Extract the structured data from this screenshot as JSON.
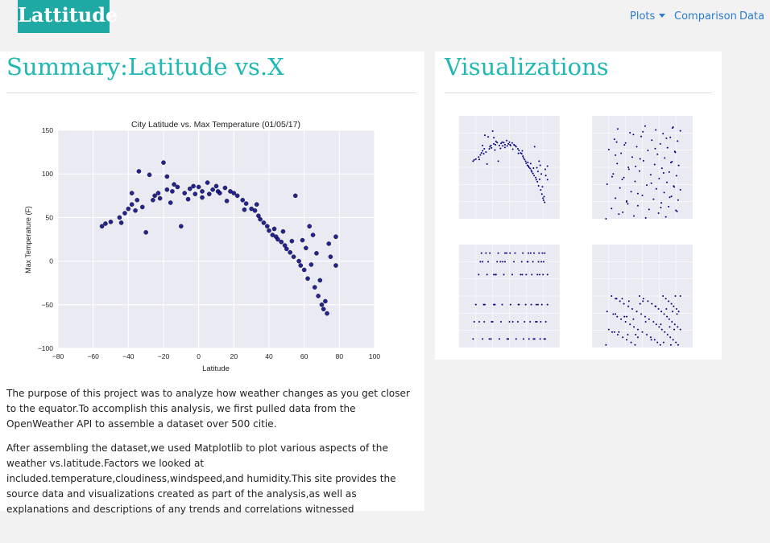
{
  "brand": "Lattitude",
  "nav": {
    "plots": "Plots",
    "comparison": "Comparison",
    "data": "Data"
  },
  "summary": {
    "heading": "Summary:Latitude vs.X",
    "paragraph1": "The purpose of this project was to analyze how weather changes as you get closer to the equator.To accomplish this analysis, we first pulled data from the OpenWeather API to assemble a dataset over 500 citie.",
    "paragraph2": "After assembling the dataset,we used Matplotlib to plot various aspects of the weather vs.latitude.Factors we looked at included.temperature,cloudiness,windspeed,and humidity.This site provides the source data and visualizations created as part of the analysis,as well as explanations and descriptions of any trends and correlations witnessed"
  },
  "visualizations": {
    "heading": "Visualizations"
  },
  "colors": {
    "accent": "#1fb8b2",
    "brand_bg": "#1fa9a4",
    "link": "#2b7bd0",
    "point": "#000080"
  },
  "chart_data": {
    "type": "scatter",
    "title": "City Latitude vs. Max Temperature (01/05/17)",
    "xlabel": "Latitude",
    "ylabel": "Max Temperature (F)",
    "xlim": [
      -80,
      100
    ],
    "ylim": [
      -100,
      150
    ],
    "xticks": [
      -80,
      -60,
      -40,
      -20,
      0,
      20,
      40,
      60,
      80,
      100
    ],
    "yticks": [
      -100,
      -50,
      0,
      50,
      100,
      150
    ],
    "grid": true,
    "points": [
      [
        -55,
        40
      ],
      [
        -53,
        43
      ],
      [
        -50,
        45
      ],
      [
        -45,
        50
      ],
      [
        -42,
        55
      ],
      [
        -40,
        60
      ],
      [
        -38,
        65
      ],
      [
        -35,
        70
      ],
      [
        -34,
        103
      ],
      [
        -30,
        33
      ],
      [
        -28,
        99
      ],
      [
        -25,
        75
      ],
      [
        -23,
        78
      ],
      [
        -20,
        113
      ],
      [
        -18,
        82
      ],
      [
        -15,
        80
      ],
      [
        -12,
        85
      ],
      [
        -10,
        40
      ],
      [
        -8,
        78
      ],
      [
        -5,
        83
      ],
      [
        -3,
        86
      ],
      [
        0,
        85
      ],
      [
        2,
        80
      ],
      [
        5,
        90
      ],
      [
        8,
        82
      ],
      [
        10,
        86
      ],
      [
        12,
        78
      ],
      [
        15,
        84
      ],
      [
        18,
        80
      ],
      [
        20,
        78
      ],
      [
        22,
        75
      ],
      [
        25,
        70
      ],
      [
        27,
        66
      ],
      [
        30,
        60
      ],
      [
        32,
        58
      ],
      [
        34,
        52
      ],
      [
        35,
        48
      ],
      [
        37,
        44
      ],
      [
        39,
        40
      ],
      [
        40,
        35
      ],
      [
        42,
        30
      ],
      [
        44,
        28
      ],
      [
        45,
        25
      ],
      [
        47,
        22
      ],
      [
        49,
        18
      ],
      [
        50,
        14
      ],
      [
        52,
        10
      ],
      [
        54,
        5
      ],
      [
        55,
        75
      ],
      [
        57,
        0
      ],
      [
        58,
        -5
      ],
      [
        60,
        -10
      ],
      [
        62,
        -20
      ],
      [
        63,
        40
      ],
      [
        65,
        30
      ],
      [
        66,
        -30
      ],
      [
        68,
        -40
      ],
      [
        70,
        -50
      ],
      [
        71,
        -55
      ],
      [
        73,
        -60
      ],
      [
        74,
        20
      ],
      [
        75,
        5
      ],
      [
        78,
        28
      ],
      [
        78,
        -5
      ],
      [
        -38,
        78
      ],
      [
        -32,
        62
      ],
      [
        -26,
        70
      ],
      [
        -22,
        72
      ],
      [
        -16,
        67
      ],
      [
        -14,
        88
      ],
      [
        -6,
        71
      ],
      [
        2,
        73
      ],
      [
        6,
        77
      ],
      [
        16,
        69
      ],
      [
        26,
        59
      ],
      [
        33,
        65
      ],
      [
        43,
        37
      ],
      [
        48,
        34
      ],
      [
        53,
        23
      ],
      [
        59,
        24
      ],
      [
        61,
        15
      ],
      [
        64,
        -4
      ],
      [
        67,
        9
      ],
      [
        69,
        -22
      ],
      [
        72,
        -46
      ],
      [
        -44,
        44
      ],
      [
        -36,
        58
      ],
      [
        -18,
        97
      ],
      [
        -2,
        77
      ],
      [
        11,
        80
      ]
    ]
  }
}
